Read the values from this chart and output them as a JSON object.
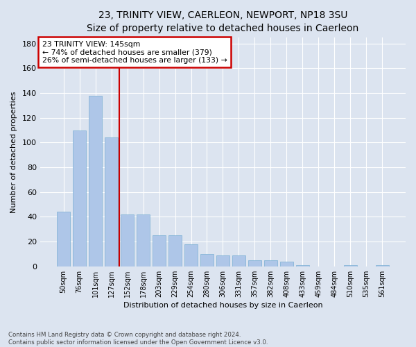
{
  "title": "23, TRINITY VIEW, CAERLEON, NEWPORT, NP18 3SU",
  "subtitle": "Size of property relative to detached houses in Caerleon",
  "xlabel": "Distribution of detached houses by size in Caerleon",
  "ylabel": "Number of detached properties",
  "categories": [
    "50sqm",
    "76sqm",
    "101sqm",
    "127sqm",
    "152sqm",
    "178sqm",
    "203sqm",
    "229sqm",
    "254sqm",
    "280sqm",
    "306sqm",
    "331sqm",
    "357sqm",
    "382sqm",
    "408sqm",
    "433sqm",
    "459sqm",
    "484sqm",
    "510sqm",
    "535sqm",
    "561sqm"
  ],
  "values": [
    44,
    110,
    138,
    104,
    42,
    42,
    25,
    25,
    18,
    10,
    9,
    9,
    5,
    5,
    4,
    1,
    0,
    0,
    1,
    0,
    1
  ],
  "bar_color": "#aec6e8",
  "bar_edge_color": "#7aafd4",
  "vline_x_index": 4,
  "vline_color": "#cc0000",
  "annotation_title": "23 TRINITY VIEW: 145sqm",
  "annotation_line1": "← 74% of detached houses are smaller (379)",
  "annotation_line2": "26% of semi-detached houses are larger (133) →",
  "annotation_box_color": "#cc0000",
  "ylim": [
    0,
    185
  ],
  "yticks": [
    0,
    20,
    40,
    60,
    80,
    100,
    120,
    140,
    160,
    180
  ],
  "footer": "Contains HM Land Registry data © Crown copyright and database right 2024.\nContains public sector information licensed under the Open Government Licence v3.0.",
  "background_color": "#dce4f0",
  "plot_bg_color": "#dce4f0",
  "title_fontsize": 10,
  "subtitle_fontsize": 9,
  "xlabel_fontsize": 8,
  "ylabel_fontsize": 8
}
